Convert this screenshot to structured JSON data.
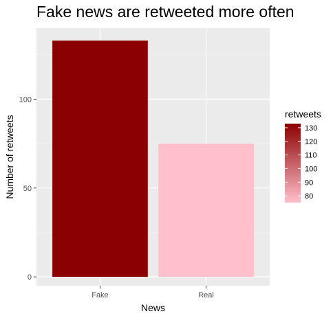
{
  "chart_data": {
    "type": "bar",
    "title": "Fake news are retweeted more often",
    "xlabel": "News",
    "ylabel": "Number of retweets",
    "categories": [
      "Fake",
      "Real"
    ],
    "values": [
      133,
      75
    ],
    "ylim": [
      -5,
      140
    ],
    "yticks": [
      0,
      50,
      100
    ],
    "grid": true,
    "background": "#ebebeb",
    "legend": {
      "title": "retweets",
      "position": "right",
      "breaks": [
        80,
        90,
        100,
        110,
        120,
        130
      ],
      "range": [
        75,
        133
      ],
      "color_low": "#ffc0cb",
      "color_high": "#8b0000"
    }
  }
}
